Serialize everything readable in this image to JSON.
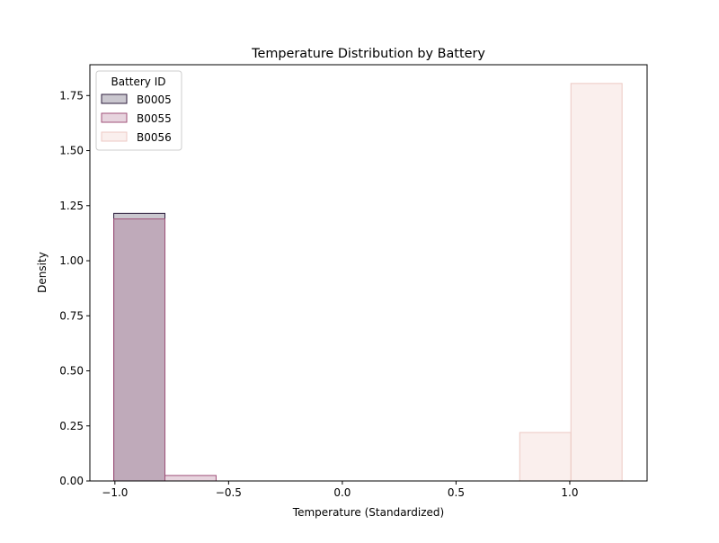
{
  "chart_data": {
    "type": "bar",
    "title": "Temperature Distribution by Battery",
    "xlabel": "Temperature (Standardized)",
    "ylabel": "Density",
    "xlim": [
      -1.11,
      1.34
    ],
    "ylim": [
      0,
      1.89
    ],
    "xticks": [
      -1.0,
      -0.5,
      0.0,
      0.5,
      1.0
    ],
    "xtick_labels": [
      "−1.0",
      "−0.5",
      "0.0",
      "0.5",
      "1.0"
    ],
    "yticks": [
      0.0,
      0.25,
      0.5,
      0.75,
      1.0,
      1.25,
      1.5,
      1.75
    ],
    "ytick_labels": [
      "0.00",
      "0.25",
      "0.50",
      "0.75",
      "1.00",
      "1.25",
      "1.50",
      "1.75"
    ],
    "grid": false,
    "legend": {
      "title": "Battery ID",
      "position": "upper-left"
    },
    "series": [
      {
        "name": "B0005",
        "fill": "#2d1e3e",
        "fill_opacity": 0.25,
        "stroke": "#2d1e3e",
        "bins": [
          {
            "x0": -1.005,
            "x1": -0.78,
            "density": 1.215
          },
          {
            "x0": -0.78,
            "x1": -0.555,
            "density": 0.0
          },
          {
            "x0": -0.555,
            "x1": 1.245,
            "density": 0.0
          }
        ]
      },
      {
        "name": "B0055",
        "fill": "#a0527a",
        "fill_opacity": 0.25,
        "stroke": "#a0527a",
        "bins": [
          {
            "x0": -1.005,
            "x1": -0.78,
            "density": 1.19
          },
          {
            "x0": -0.78,
            "x1": -0.555,
            "density": 0.025
          },
          {
            "x0": -0.555,
            "x1": 1.245,
            "density": 0.0
          }
        ]
      },
      {
        "name": "B0056",
        "fill": "#f2d2cc",
        "fill_opacity": 0.35,
        "stroke": "#edcac4",
        "bins": [
          {
            "x0": -0.555,
            "x1": 0.78,
            "density": 0.0
          },
          {
            "x0": 0.78,
            "x1": 1.005,
            "density": 0.22
          },
          {
            "x0": 1.005,
            "x1": 1.23,
            "density": 1.805
          }
        ]
      }
    ]
  }
}
